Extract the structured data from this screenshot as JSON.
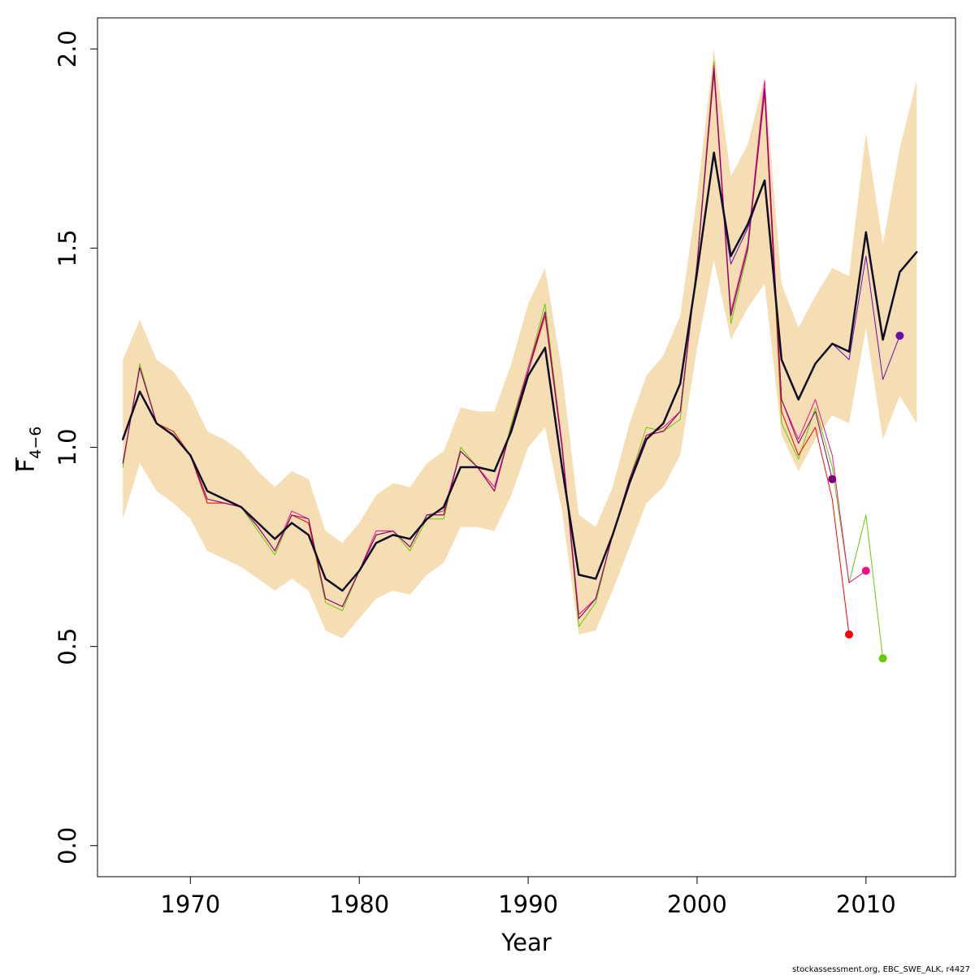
{
  "chart_data": {
    "type": "line",
    "xlabel": "Year",
    "ylabel_main": "F",
    "ylabel_sub": "4−6",
    "xlim": [
      1964.5,
      2015.3
    ],
    "ylim": [
      -0.078,
      2.078
    ],
    "x_ticks": [
      1970,
      1980,
      1990,
      2000,
      2010
    ],
    "y_ticks": [
      0.0,
      0.5,
      1.0,
      1.5,
      2.0
    ],
    "y_tick_labels": [
      "0.0",
      "0.5",
      "1.0",
      "1.5",
      "2.0"
    ],
    "grid": false,
    "legend": "none",
    "band": {
      "color": "#f5deb3",
      "x": [
        1966,
        1967,
        1968,
        1969,
        1970,
        1971,
        1972,
        1973,
        1974,
        1975,
        1976,
        1977,
        1978,
        1979,
        1980,
        1981,
        1982,
        1983,
        1984,
        1985,
        1986,
        1987,
        1988,
        1989,
        1990,
        1991,
        1992,
        1993,
        1994,
        1995,
        1996,
        1997,
        1998,
        1999,
        2000,
        2001,
        2002,
        2003,
        2004,
        2005,
        2006,
        2007,
        2008,
        2009,
        2010,
        2011,
        2012,
        2013
      ],
      "lower": [
        0.82,
        0.96,
        0.89,
        0.86,
        0.82,
        0.74,
        0.72,
        0.7,
        0.67,
        0.64,
        0.67,
        0.64,
        0.54,
        0.52,
        0.57,
        0.62,
        0.64,
        0.63,
        0.68,
        0.71,
        0.8,
        0.8,
        0.79,
        0.88,
        1.0,
        1.05,
        0.84,
        0.53,
        0.54,
        0.64,
        0.75,
        0.86,
        0.9,
        0.98,
        1.25,
        1.47,
        1.27,
        1.35,
        1.41,
        1.03,
        0.94,
        1.02,
        1.08,
        1.06,
        1.3,
        1.02,
        1.13,
        1.06
      ],
      "upper": [
        1.22,
        1.32,
        1.22,
        1.19,
        1.13,
        1.04,
        1.02,
        0.99,
        0.94,
        0.9,
        0.94,
        0.92,
        0.79,
        0.76,
        0.81,
        0.88,
        0.91,
        0.9,
        0.96,
        0.99,
        1.1,
        1.09,
        1.09,
        1.21,
        1.36,
        1.45,
        1.19,
        0.83,
        0.8,
        0.9,
        1.06,
        1.18,
        1.23,
        1.33,
        1.63,
        2.0,
        1.68,
        1.76,
        1.93,
        1.41,
        1.3,
        1.38,
        1.45,
        1.43,
        1.79,
        1.51,
        1.75,
        1.92
      ]
    },
    "series": [
      {
        "color": "#66cc00",
        "width": 1,
        "x": [
          1966,
          1967,
          1968,
          1969,
          1970,
          1971,
          1972,
          1973,
          1974,
          1975,
          1976,
          1977,
          1978,
          1979,
          1980,
          1981,
          1982,
          1983,
          1984,
          1985,
          1986,
          1987,
          1988,
          1989,
          1990,
          1991,
          1992,
          1993,
          1994,
          1995,
          1996,
          1997,
          1998,
          1999,
          2000,
          2001,
          2002,
          2003,
          2004,
          2005,
          2006,
          2007,
          2008,
          2009,
          2010,
          2011
        ],
        "y": [
          0.95,
          1.21,
          1.06,
          1.04,
          0.98,
          0.86,
          0.86,
          0.85,
          0.79,
          0.73,
          0.83,
          0.81,
          0.61,
          0.59,
          0.69,
          0.78,
          0.79,
          0.74,
          0.82,
          0.82,
          1.0,
          0.95,
          0.89,
          1.06,
          1.2,
          1.36,
          1.01,
          0.55,
          0.61,
          0.78,
          0.92,
          1.05,
          1.04,
          1.07,
          1.47,
          1.97,
          1.31,
          1.49,
          1.9,
          1.06,
          0.97,
          1.1,
          0.95,
          0.66,
          0.83,
          0.47
        ],
        "end_marker": true
      },
      {
        "color": "#ff0000",
        "width": 1,
        "x": [
          1966,
          1967,
          1968,
          1969,
          1970,
          1971,
          1972,
          1973,
          1974,
          1975,
          1976,
          1977,
          1978,
          1979,
          1980,
          1981,
          1982,
          1983,
          1984,
          1985,
          1986,
          1987,
          1988,
          1989,
          1990,
          1991,
          1992,
          1993,
          1994,
          1995,
          1996,
          1997,
          1998,
          1999,
          2000,
          2001,
          2002,
          2003,
          2004,
          2005,
          2006,
          2007,
          2008,
          2009
        ],
        "y": [
          0.96,
          1.2,
          1.06,
          1.04,
          0.98,
          0.86,
          0.86,
          0.85,
          0.8,
          0.74,
          0.83,
          0.81,
          0.62,
          0.6,
          0.69,
          0.78,
          0.79,
          0.75,
          0.83,
          0.83,
          0.99,
          0.95,
          0.89,
          1.05,
          1.19,
          1.33,
          1.0,
          0.57,
          0.62,
          0.78,
          0.92,
          1.03,
          1.04,
          1.09,
          1.46,
          1.94,
          1.33,
          1.5,
          1.89,
          1.09,
          0.98,
          1.05,
          0.87,
          0.53
        ],
        "end_marker": true
      },
      {
        "color": "#ee1188",
        "width": 1,
        "x": [
          1966,
          1967,
          1968,
          1969,
          1970,
          1971,
          1972,
          1973,
          1974,
          1975,
          1976,
          1977,
          1978,
          1979,
          1980,
          1981,
          1982,
          1983,
          1984,
          1985,
          1986,
          1987,
          1988,
          1989,
          1990,
          1991,
          1992,
          1993,
          1994,
          1995,
          1996,
          1997,
          1998,
          1999,
          2000,
          2001,
          2002,
          2003,
          2004,
          2005,
          2006,
          2007,
          2008,
          2009,
          2010
        ],
        "y": [
          0.96,
          1.2,
          1.06,
          1.03,
          0.98,
          0.87,
          0.86,
          0.85,
          0.8,
          0.74,
          0.84,
          0.82,
          0.62,
          0.6,
          0.69,
          0.79,
          0.79,
          0.75,
          0.83,
          0.84,
          0.99,
          0.95,
          0.9,
          1.05,
          1.2,
          1.34,
          1.01,
          0.58,
          0.62,
          0.78,
          0.92,
          1.03,
          1.05,
          1.09,
          1.46,
          1.96,
          1.34,
          1.51,
          1.92,
          1.12,
          1.02,
          1.12,
          0.98,
          0.66,
          0.69
        ],
        "end_marker": true
      },
      {
        "color": "#800080",
        "width": 1,
        "x": [
          1966,
          1967,
          1968,
          1969,
          1970,
          1971,
          1972,
          1973,
          1974,
          1975,
          1976,
          1977,
          1978,
          1979,
          1980,
          1981,
          1982,
          1983,
          1984,
          1985,
          1986,
          1987,
          1988,
          1989,
          1990,
          1991,
          1992,
          1993,
          1994,
          1995,
          1996,
          1997,
          1998,
          1999,
          2000,
          2001,
          2002,
          2003,
          2004,
          2005,
          2006,
          2007,
          2008
        ],
        "y": [
          0.96,
          1.2,
          1.06,
          1.03,
          0.98,
          0.87,
          0.86,
          0.85,
          0.8,
          0.74,
          0.83,
          0.82,
          0.62,
          0.6,
          0.69,
          0.78,
          0.79,
          0.75,
          0.83,
          0.83,
          0.99,
          0.95,
          0.89,
          1.05,
          1.19,
          1.34,
          1.0,
          0.57,
          0.62,
          0.78,
          0.92,
          1.03,
          1.04,
          1.09,
          1.46,
          1.95,
          1.33,
          1.5,
          1.9,
          1.12,
          1.01,
          1.09,
          0.92
        ],
        "end_marker": true
      },
      {
        "color": "#6a0dad",
        "width": 1,
        "x": [
          1966,
          1967,
          1968,
          1969,
          1970,
          1971,
          1972,
          1973,
          1974,
          1975,
          1976,
          1977,
          1978,
          1979,
          1980,
          1981,
          1982,
          1983,
          1984,
          1985,
          1986,
          1987,
          1988,
          1989,
          1990,
          1991,
          1992,
          1993,
          1994,
          1995,
          1996,
          1997,
          1998,
          1999,
          2000,
          2001,
          2002,
          2003,
          2004,
          2005,
          2006,
          2007,
          2008,
          2009,
          2010,
          2011,
          2012
        ],
        "y": [
          1.02,
          1.14,
          1.06,
          1.03,
          0.98,
          0.89,
          0.87,
          0.85,
          0.81,
          0.77,
          0.81,
          0.78,
          0.67,
          0.64,
          0.69,
          0.76,
          0.78,
          0.77,
          0.82,
          0.85,
          0.95,
          0.95,
          0.94,
          1.04,
          1.18,
          1.25,
          0.95,
          0.68,
          0.67,
          0.78,
          0.91,
          1.02,
          1.06,
          1.16,
          1.44,
          1.74,
          1.46,
          1.55,
          1.67,
          1.22,
          1.12,
          1.21,
          1.26,
          1.22,
          1.48,
          1.17,
          1.28
        ],
        "end_marker": true
      },
      {
        "color": "#0d0d26",
        "width": 2.5,
        "x": [
          1966,
          1967,
          1968,
          1969,
          1970,
          1971,
          1972,
          1973,
          1974,
          1975,
          1976,
          1977,
          1978,
          1979,
          1980,
          1981,
          1982,
          1983,
          1984,
          1985,
          1986,
          1987,
          1988,
          1989,
          1990,
          1991,
          1992,
          1993,
          1994,
          1995,
          1996,
          1997,
          1998,
          1999,
          2000,
          2001,
          2002,
          2003,
          2004,
          2005,
          2006,
          2007,
          2008,
          2009,
          2010,
          2011,
          2012,
          2013
        ],
        "y": [
          1.02,
          1.14,
          1.06,
          1.03,
          0.98,
          0.89,
          0.87,
          0.85,
          0.81,
          0.77,
          0.81,
          0.78,
          0.67,
          0.64,
          0.69,
          0.76,
          0.78,
          0.77,
          0.82,
          0.85,
          0.95,
          0.95,
          0.94,
          1.04,
          1.18,
          1.25,
          0.95,
          0.68,
          0.67,
          0.78,
          0.91,
          1.02,
          1.06,
          1.16,
          1.44,
          1.74,
          1.48,
          1.56,
          1.67,
          1.22,
          1.12,
          1.21,
          1.26,
          1.24,
          1.54,
          1.27,
          1.44,
          1.49
        ],
        "end_marker": false
      }
    ]
  },
  "footnote": "stockassessment.org, EBC_SWE_ALK, r4427"
}
